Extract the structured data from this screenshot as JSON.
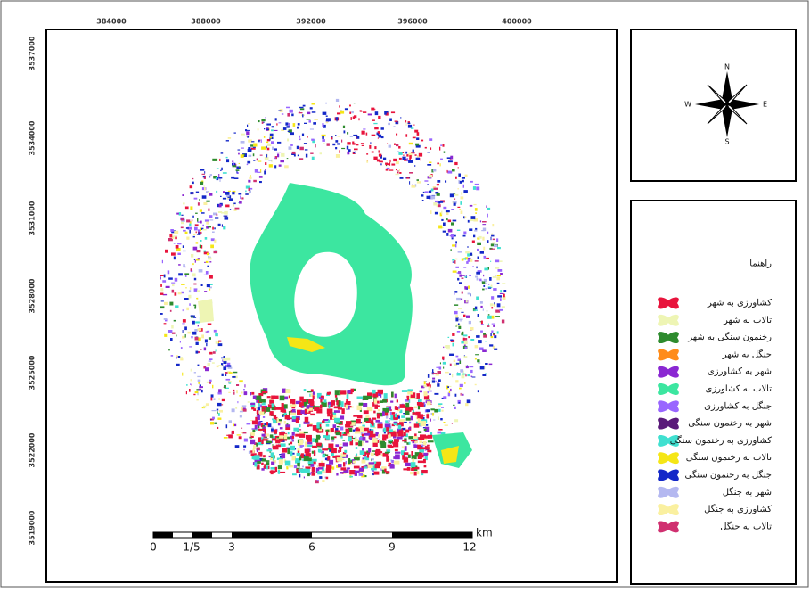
{
  "map": {
    "x_labels": [
      "384000",
      "388000",
      "392000",
      "396000",
      "400000"
    ],
    "y_labels": [
      "3537000",
      "3534000",
      "3531000",
      "3528000",
      "3525000",
      "3522000",
      "3519000"
    ],
    "compass": {
      "n": "N",
      "e": "E",
      "s": "S",
      "w": "W"
    },
    "legend": {
      "title": "راهنما",
      "items": [
        {
          "label": "کشاورزی به شهر",
          "color": "#e8143c"
        },
        {
          "label": "تالاب به شهر",
          "color": "#eef5b4"
        },
        {
          "label": "رخنمون سنگی به شهر",
          "color": "#2e8b2e"
        },
        {
          "label": "جنگل به شهر",
          "color": "#ff8c1a"
        },
        {
          "label": "شهر به کشاورزی",
          "color": "#8a28d2"
        },
        {
          "label": "تالاب به کشاورزی",
          "color": "#3ce6a0"
        },
        {
          "label": "جنگل به کشاورزی",
          "color": "#9966ff"
        },
        {
          "label": "شهر به رخنمون سنگی",
          "color": "#5a1a7a"
        },
        {
          "label": "کشاورزی به رخنمون سنگی",
          "color": "#40e0d0"
        },
        {
          "label": "تالاب به رخنمون سنگی",
          "color": "#f5e616"
        },
        {
          "label": "جنگل به رخنمون سنگی",
          "color": "#1428c8"
        },
        {
          "label": "شهر به جنگل",
          "color": "#b4b8f0"
        },
        {
          "label": "کشاورزی به جنگل",
          "color": "#faf0a0"
        },
        {
          "label": "تالاب به جنگل",
          "color": "#d03070"
        }
      ]
    },
    "scale_bar": {
      "labels": [
        "0",
        "1/5",
        "3",
        "6",
        "9",
        "12"
      ],
      "unit": "km"
    }
  }
}
